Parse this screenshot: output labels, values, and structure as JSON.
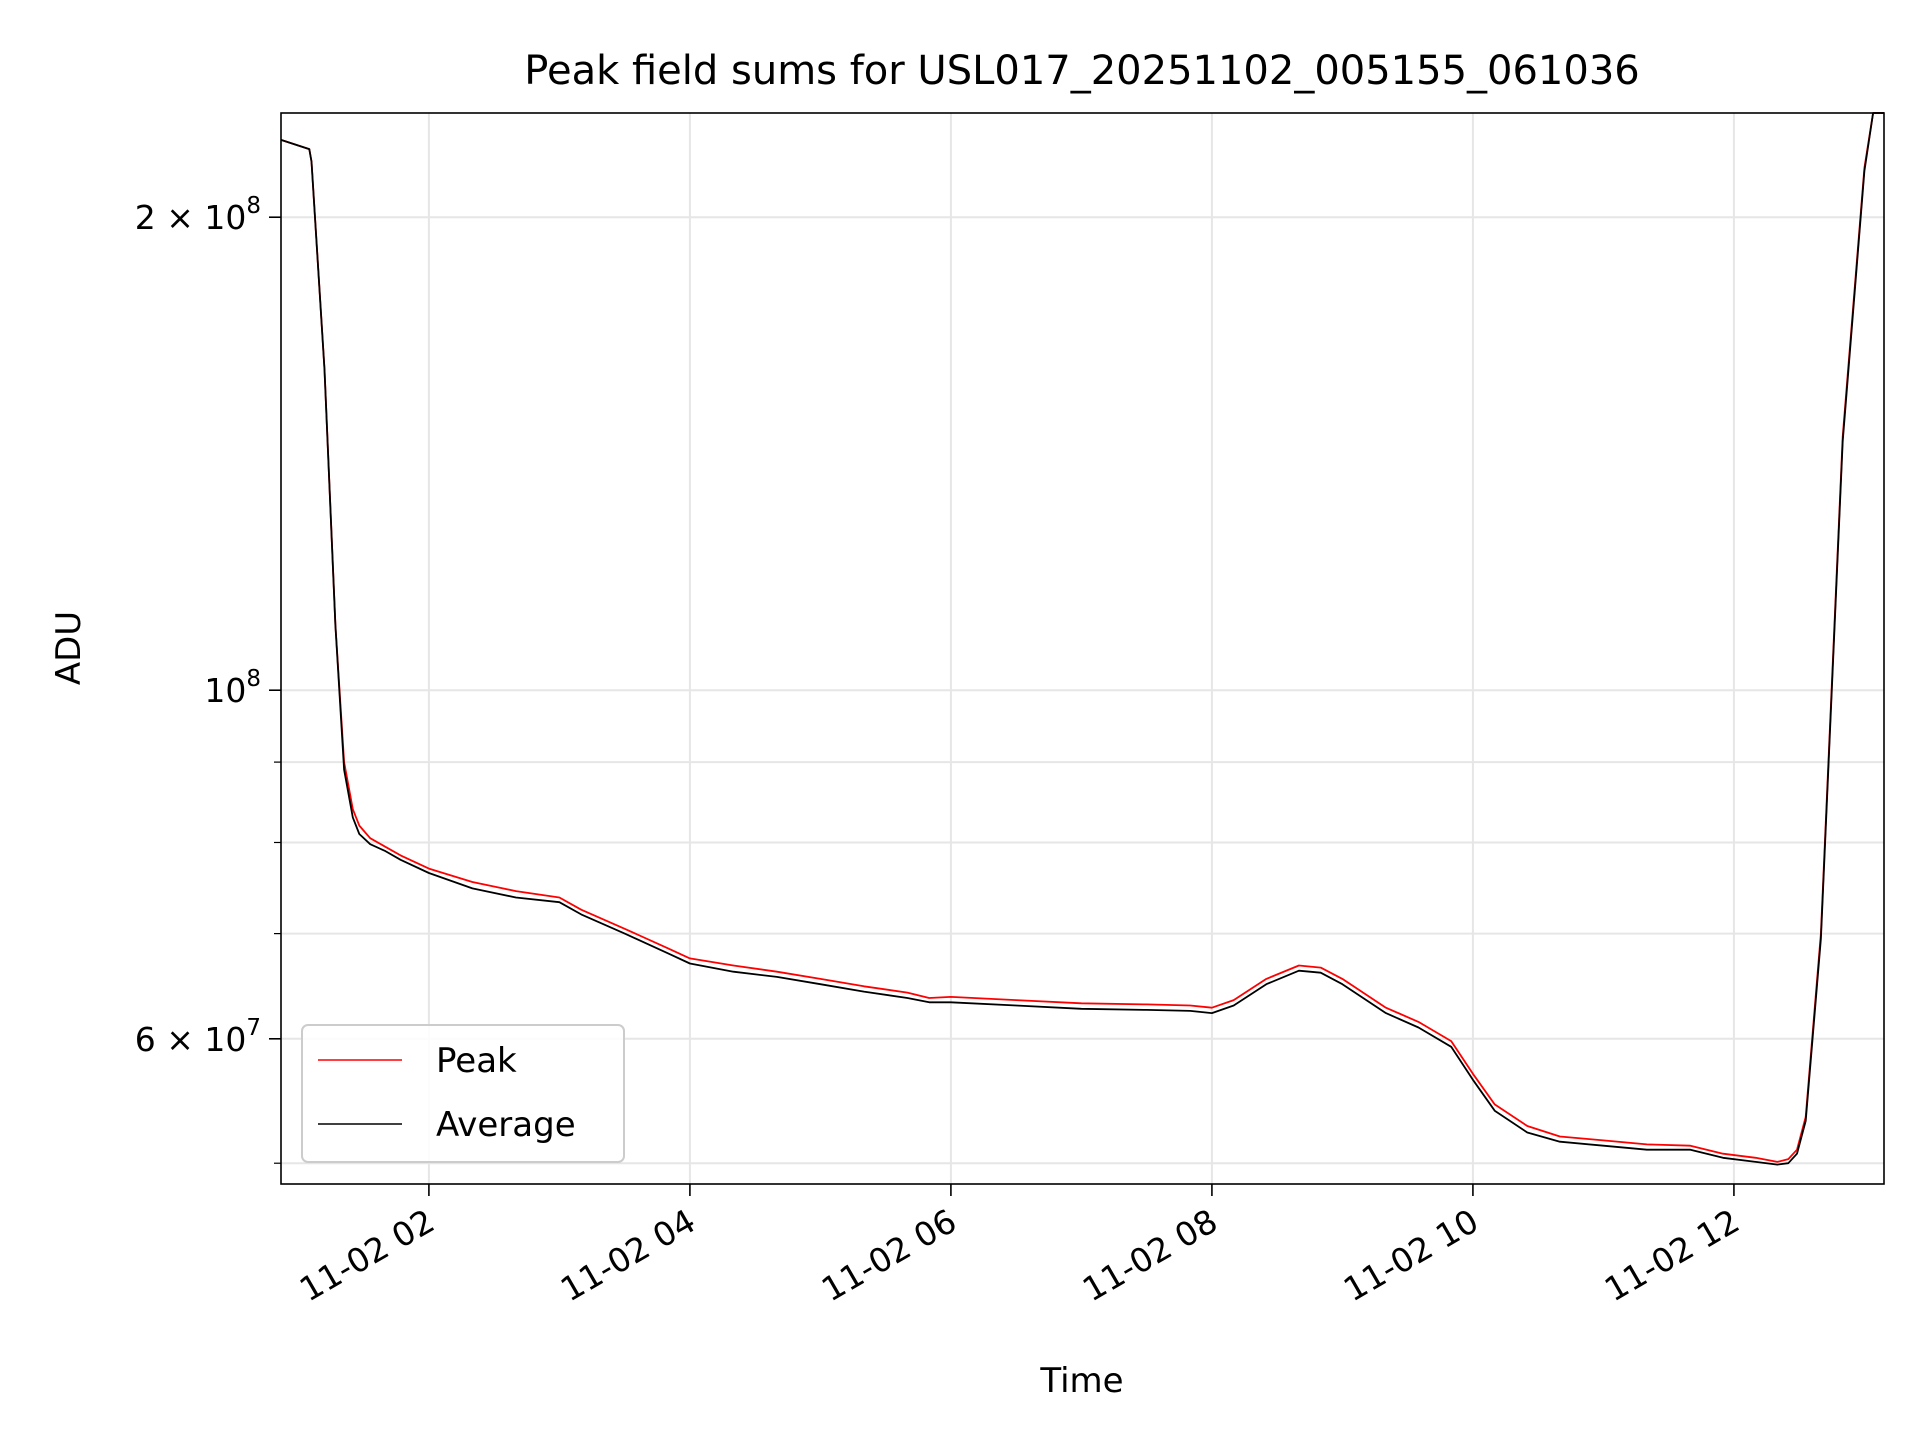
{
  "chart_data": {
    "type": "line",
    "title": "Peak field sums for USL017_20251102_005155_061036",
    "xlabel": "Time",
    "ylabel": "ADU",
    "yscale": "log",
    "grid": true,
    "legend_position": "lower-left",
    "xlim": [
      "2025-11-02 00:52",
      "2025-11-02 13:09"
    ],
    "ylim": [
      48500000,
      233000000
    ],
    "x_ticks": [
      {
        "value": "2025-11-02 02:00",
        "label": "11-02 02"
      },
      {
        "value": "2025-11-02 04:00",
        "label": "11-02 04"
      },
      {
        "value": "2025-11-02 06:00",
        "label": "11-02 06"
      },
      {
        "value": "2025-11-02 08:00",
        "label": "11-02 08"
      },
      {
        "value": "2025-11-02 10:00",
        "label": "11-02 10"
      },
      {
        "value": "2025-11-02 12:00",
        "label": "11-02 12"
      }
    ],
    "y_major_ticks": [
      {
        "value": 60000000,
        "mant": "6",
        "sep": " × ",
        "base": "10",
        "exp": "7"
      },
      {
        "value": 100000000,
        "mant": "",
        "sep": "",
        "base": "10",
        "exp": "8"
      },
      {
        "value": 200000000,
        "mant": "2",
        "sep": " × ",
        "base": "10",
        "exp": "8"
      }
    ],
    "y_minor_ticks": [
      50000000,
      70000000,
      80000000,
      90000000
    ],
    "series": [
      {
        "name": "Peak",
        "color": "#ff0000",
        "x": [
          "2025-11-02 00:52",
          "2025-11-02 01:05",
          "2025-11-02 01:06",
          "2025-11-02 01:12",
          "2025-11-02 01:17",
          "2025-11-02 01:21",
          "2025-11-02 01:25",
          "2025-11-02 01:28",
          "2025-11-02 01:33",
          "2025-11-02 01:40",
          "2025-11-02 01:47",
          "2025-11-02 02:00",
          "2025-11-02 02:20",
          "2025-11-02 02:40",
          "2025-11-02 03:00",
          "2025-11-02 03:10",
          "2025-11-02 03:30",
          "2025-11-02 03:50",
          "2025-11-02 04:00",
          "2025-11-02 04:20",
          "2025-11-02 04:40",
          "2025-11-02 05:00",
          "2025-11-02 05:20",
          "2025-11-02 05:40",
          "2025-11-02 05:50",
          "2025-11-02 06:00",
          "2025-11-02 06:30",
          "2025-11-02 07:00",
          "2025-11-02 07:30",
          "2025-11-02 07:50",
          "2025-11-02 08:00",
          "2025-11-02 08:10",
          "2025-11-02 08:25",
          "2025-11-02 08:40",
          "2025-11-02 08:50",
          "2025-11-02 09:00",
          "2025-11-02 09:20",
          "2025-11-02 09:35",
          "2025-11-02 09:50",
          "2025-11-02 10:00",
          "2025-11-02 10:10",
          "2025-11-02 10:25",
          "2025-11-02 10:40",
          "2025-11-02 11:00",
          "2025-11-02 11:20",
          "2025-11-02 11:40",
          "2025-11-02 11:55",
          "2025-11-02 12:10",
          "2025-11-02 12:20",
          "2025-11-02 12:25",
          "2025-11-02 12:29",
          "2025-11-02 12:33",
          "2025-11-02 12:40",
          "2025-11-02 12:50",
          "2025-11-02 13:00",
          "2025-11-02 13:04",
          "2025-11-02 13:09"
        ],
        "y": [
          224000000,
          221000000,
          217000000,
          160000000,
          110000000,
          90000000,
          84000000,
          82000000,
          80500000,
          79500000,
          78500000,
          77000000,
          75500000,
          74500000,
          73800000,
          72500000,
          70500000,
          68500000,
          67500000,
          66800000,
          66200000,
          65500000,
          64800000,
          64200000,
          63700000,
          63800000,
          63500000,
          63200000,
          63100000,
          63000000,
          62800000,
          63500000,
          65500000,
          66800000,
          66600000,
          65500000,
          62800000,
          61500000,
          59800000,
          57000000,
          54500000,
          52800000,
          52000000,
          51700000,
          51400000,
          51300000,
          50700000,
          50400000,
          50100000,
          50300000,
          51000000,
          53500000,
          70000000,
          145000000,
          215000000,
          233000000,
          233000000
        ]
      },
      {
        "name": "Average",
        "color": "#000000",
        "x": [
          "2025-11-02 00:52",
          "2025-11-02 01:05",
          "2025-11-02 01:06",
          "2025-11-02 01:12",
          "2025-11-02 01:17",
          "2025-11-02 01:21",
          "2025-11-02 01:25",
          "2025-11-02 01:28",
          "2025-11-02 01:33",
          "2025-11-02 01:40",
          "2025-11-02 01:47",
          "2025-11-02 02:00",
          "2025-11-02 02:20",
          "2025-11-02 02:40",
          "2025-11-02 03:00",
          "2025-11-02 03:10",
          "2025-11-02 03:30",
          "2025-11-02 03:50",
          "2025-11-02 04:00",
          "2025-11-02 04:20",
          "2025-11-02 04:40",
          "2025-11-02 05:00",
          "2025-11-02 05:20",
          "2025-11-02 05:40",
          "2025-11-02 05:50",
          "2025-11-02 06:00",
          "2025-11-02 06:30",
          "2025-11-02 07:00",
          "2025-11-02 07:30",
          "2025-11-02 07:50",
          "2025-11-02 08:00",
          "2025-11-02 08:10",
          "2025-11-02 08:25",
          "2025-11-02 08:40",
          "2025-11-02 08:50",
          "2025-11-02 09:00",
          "2025-11-02 09:20",
          "2025-11-02 09:35",
          "2025-11-02 09:50",
          "2025-11-02 10:00",
          "2025-11-02 10:10",
          "2025-11-02 10:25",
          "2025-11-02 10:40",
          "2025-11-02 11:00",
          "2025-11-02 11:20",
          "2025-11-02 11:40",
          "2025-11-02 11:55",
          "2025-11-02 12:10",
          "2025-11-02 12:20",
          "2025-11-02 12:25",
          "2025-11-02 12:29",
          "2025-11-02 12:33",
          "2025-11-02 12:40",
          "2025-11-02 12:50",
          "2025-11-02 13:00",
          "2025-11-02 13:04",
          "2025-11-02 13:09"
        ],
        "y": [
          224000000,
          221000000,
          217000000,
          160000000,
          110000000,
          89000000,
          83000000,
          81000000,
          79800000,
          79000000,
          78000000,
          76500000,
          74800000,
          73800000,
          73300000,
          72000000,
          70000000,
          68000000,
          67000000,
          66200000,
          65700000,
          65000000,
          64300000,
          63700000,
          63300000,
          63300000,
          63000000,
          62700000,
          62600000,
          62500000,
          62300000,
          63000000,
          65000000,
          66300000,
          66100000,
          65000000,
          62300000,
          61000000,
          59300000,
          56500000,
          54000000,
          52300000,
          51600000,
          51300000,
          51000000,
          51000000,
          50400000,
          50100000,
          49900000,
          50000000,
          50700000,
          53200000,
          69500000,
          144000000,
          214000000,
          233000000,
          233000000
        ]
      }
    ]
  }
}
